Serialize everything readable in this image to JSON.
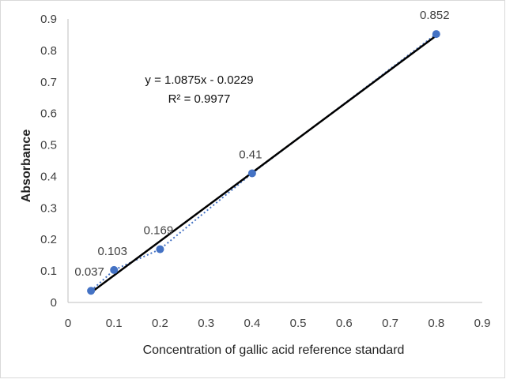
{
  "chart_data": {
    "type": "scatter",
    "xlabel": "Concentration of gallic acid reference  standard",
    "ylabel": "Absorbance",
    "xlim": [
      0,
      0.9
    ],
    "ylim": [
      0,
      0.9
    ],
    "x_ticks": [
      "0",
      "0.1",
      "0.2",
      "0.3",
      "0.4",
      "0.5",
      "0.6",
      "0.7",
      "0.8",
      "0.9"
    ],
    "y_ticks": [
      "0",
      "0.1",
      "0.2",
      "0.3",
      "0.4",
      "0.5",
      "0.6",
      "0.7",
      "0.8",
      "0.9"
    ],
    "grid": false,
    "legend": "none",
    "series": [
      {
        "x": [
          0.05,
          0.1,
          0.2,
          0.4,
          0.8
        ],
        "y": [
          0.037,
          0.103,
          0.169,
          0.41,
          0.852
        ],
        "labels": [
          "0.037",
          "0.103",
          "0.169",
          "0.41",
          "0.852"
        ],
        "marker_color": "#4472C4",
        "connector": "dotted",
        "connector_color": "#4472C4"
      }
    ],
    "trendline": {
      "type": "linear",
      "slope": 1.0875,
      "intercept": -0.0229,
      "x_range": [
        0.05,
        0.8
      ],
      "color": "#000000",
      "equation": "y = 1.0875x - 0.0229",
      "r_squared": "R² = 0.9977"
    }
  }
}
